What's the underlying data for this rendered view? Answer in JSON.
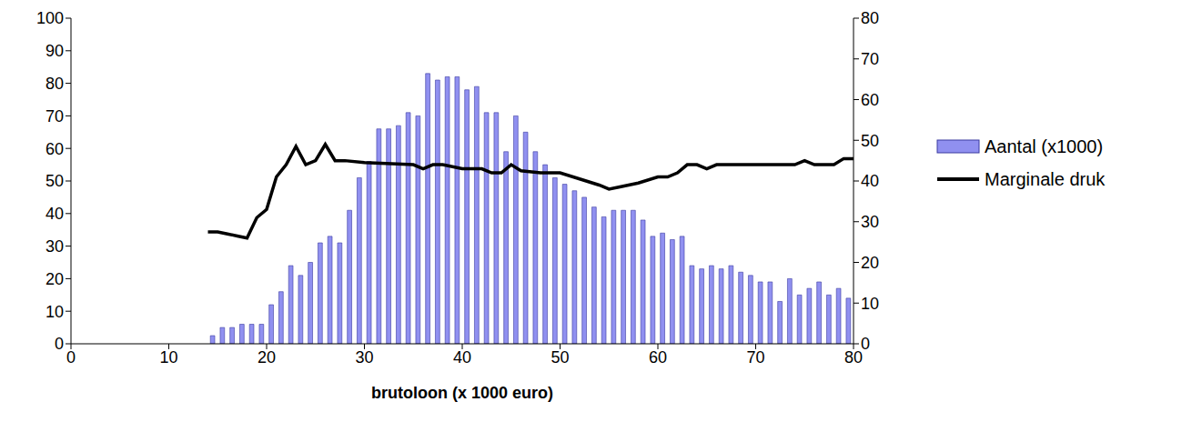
{
  "chart_data": {
    "type": "histogram",
    "x_label": "brutoloon (x 1000 euro)",
    "xlim": [
      0,
      80
    ],
    "xticks": [
      0,
      10,
      20,
      30,
      40,
      50,
      60,
      70,
      80
    ],
    "ylim": [
      0,
      100
    ],
    "yticks": [
      0,
      10,
      20,
      30,
      40,
      50,
      60,
      70,
      80,
      90,
      100
    ],
    "y2lim": [
      0,
      80
    ],
    "y2ticks": [
      0,
      10,
      20,
      30,
      40,
      50,
      60,
      70,
      80
    ],
    "legend": "right",
    "series": [
      {
        "name": "Aantal (x1000)",
        "type": "bar",
        "color": "#9090f0",
        "bins": [
          14,
          15,
          16,
          17,
          18,
          19,
          20,
          21,
          22,
          23,
          24,
          25,
          26,
          27,
          28,
          29,
          30,
          31,
          32,
          33,
          34,
          35,
          36,
          37,
          38,
          39,
          40,
          41,
          42,
          43,
          44,
          45,
          46,
          47,
          48,
          49,
          50,
          51,
          52,
          53,
          54,
          55,
          56,
          57,
          58,
          59,
          60,
          61,
          62,
          63,
          64,
          65,
          66,
          67,
          68,
          69,
          70,
          71,
          72,
          73,
          74,
          75,
          76,
          77,
          78,
          79,
          80
        ],
        "values": [
          2.5,
          5,
          5,
          6,
          6,
          6,
          12,
          16,
          24,
          21,
          25,
          31,
          33,
          31,
          41,
          51,
          56,
          66,
          66,
          67,
          71,
          70,
          83,
          81,
          82,
          82,
          78,
          79,
          71,
          71,
          59,
          70,
          65,
          59,
          55,
          51,
          49,
          47,
          45,
          42,
          39,
          41,
          41,
          41,
          38,
          33,
          34,
          32,
          33,
          24,
          23,
          24,
          23,
          24,
          22,
          21,
          19,
          19,
          13,
          20,
          15,
          17,
          19,
          15,
          17,
          14
        ]
      },
      {
        "name": "Marginale druk",
        "type": "line",
        "color": "#000000",
        "axis": "y2",
        "x": [
          14,
          15,
          16,
          17,
          18,
          19,
          20,
          21,
          22,
          23,
          24,
          25,
          26,
          27,
          28,
          30,
          35,
          36,
          37,
          38,
          40,
          42,
          43,
          44,
          45,
          46,
          48,
          50,
          52,
          54,
          55,
          56,
          58,
          60,
          61,
          62,
          63,
          64,
          65,
          66,
          68,
          70,
          72,
          74,
          75,
          76,
          78,
          79,
          80
        ],
        "values": [
          27.5,
          27.5,
          27,
          26.5,
          26,
          31,
          33,
          41,
          44,
          48.5,
          44,
          45,
          49,
          45,
          45,
          44.5,
          44,
          43,
          44,
          44,
          43,
          43,
          42,
          42,
          44,
          42.5,
          42,
          42,
          40.5,
          39,
          38,
          38.5,
          39.5,
          41,
          41,
          42,
          44,
          44,
          43,
          44,
          44,
          44,
          44,
          44,
          45,
          44,
          44,
          45.5,
          45.5
        ]
      }
    ]
  }
}
